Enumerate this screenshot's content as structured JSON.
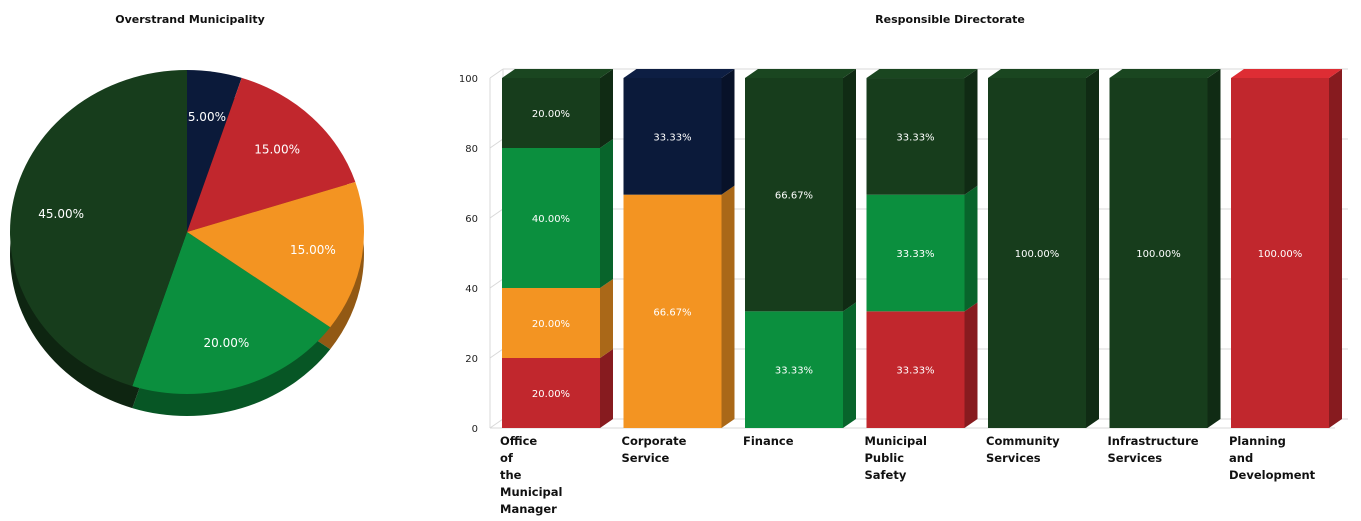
{
  "chart_data": [
    {
      "type": "pie",
      "title": "Overstrand Municipality",
      "slices": [
        {
          "label": "5.00%",
          "value": 5.0,
          "color": "#0b1a3a"
        },
        {
          "label": "15.00%",
          "value": 15.0,
          "color": "#c1272d"
        },
        {
          "label": "15.00%",
          "value": 15.0,
          "color": "#f39422"
        },
        {
          "label": "20.00%",
          "value": 20.0,
          "color": "#0b8f3e"
        },
        {
          "label": "45.00%",
          "value": 45.0,
          "color": "#173d1c"
        }
      ]
    },
    {
      "type": "bar",
      "stacked": true,
      "title": "Responsible Directorate",
      "ylim": [
        0,
        100
      ],
      "yticks": [
        "0",
        "20",
        "40",
        "60",
        "80",
        "100"
      ],
      "categories": [
        "Office\nof\nthe\nMunicipal\nManager",
        "Corporate\nService",
        "Finance",
        "Municipal\nPublic\nSafety",
        "Community\nServices",
        "Infrastructure\nServices",
        "Planning\nand\nDevelopment"
      ],
      "series": [
        {
          "color": "#c1272d",
          "values": [
            20.0,
            0,
            0,
            33.33,
            0,
            0,
            100.0
          ],
          "labels": [
            "20.00%",
            "",
            "",
            "33.33%",
            "",
            "",
            "100.00%"
          ]
        },
        {
          "color": "#f39422",
          "values": [
            20.0,
            66.67,
            0,
            0,
            0,
            0,
            0
          ],
          "labels": [
            "20.00%",
            "66.67%",
            "",
            "",
            "",
            "",
            ""
          ]
        },
        {
          "color": "#0b8f3e",
          "values": [
            40.0,
            0,
            33.33,
            33.33,
            0,
            0,
            0
          ],
          "labels": [
            "40.00%",
            "",
            "33.33%",
            "33.33%",
            "",
            "",
            ""
          ]
        },
        {
          "color": "#173d1c",
          "values": [
            20.0,
            0,
            66.67,
            33.33,
            100.0,
            100.0,
            0
          ],
          "labels": [
            "20.00%",
            "",
            "66.67%",
            "33.33%",
            "100.00%",
            "100.00%",
            ""
          ]
        },
        {
          "color": "#0b1a3a",
          "values": [
            0,
            33.33,
            0,
            0,
            0,
            0,
            0
          ],
          "labels": [
            "",
            "33.33%",
            "",
            "",
            "",
            "",
            ""
          ]
        }
      ]
    }
  ]
}
